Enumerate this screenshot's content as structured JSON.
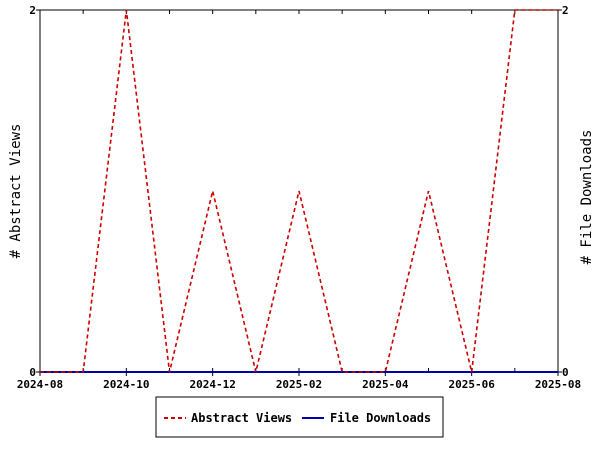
{
  "chart_data": {
    "type": "line",
    "x": [
      "2024-08",
      "2024-09",
      "2024-10",
      "2024-11",
      "2024-12",
      "2025-01",
      "2025-02",
      "2025-03",
      "2025-04",
      "2025-05",
      "2025-06",
      "2025-07",
      "2025-08"
    ],
    "x_tick_labels": [
      "2024-08",
      "2024-10",
      "2024-12",
      "2025-02",
      "2025-04",
      "2025-06",
      "2025-08"
    ],
    "series": [
      {
        "name": "Abstract Views",
        "axis": "left",
        "color": "#cc0000",
        "style": "dashed",
        "values": [
          0,
          0,
          2,
          0,
          1,
          0,
          1,
          0,
          0,
          1,
          0,
          2,
          2
        ]
      },
      {
        "name": "File Downloads",
        "axis": "right",
        "color": "#0000aa",
        "style": "solid",
        "values": [
          0,
          0,
          0,
          0,
          0,
          0,
          0,
          0,
          0,
          0,
          0,
          0,
          0
        ]
      }
    ],
    "ylabel_left": "# Abstract Views",
    "ylabel_right": "# File Downloads",
    "ylim_left": [
      0,
      2
    ],
    "ylim_right": [
      0,
      2
    ],
    "y_ticks_left": [
      "0",
      "2"
    ],
    "y_ticks_right": [
      "0",
      "2"
    ],
    "grid": false,
    "legend_position": "bottom"
  }
}
